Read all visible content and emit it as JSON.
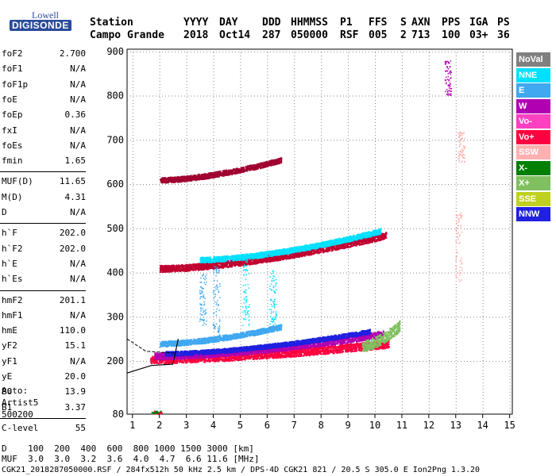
{
  "logo": {
    "line1": "Lowell",
    "line2": "DIGISONDE"
  },
  "header": {
    "row1": [
      {
        "key": "station_label",
        "text": "Station"
      },
      {
        "key": "yyyy_label",
        "text": "YYYY"
      },
      {
        "key": "day_label",
        "text": "DAY"
      },
      {
        "key": "ddd_label",
        "text": "DDD"
      },
      {
        "key": "hhmmss_label",
        "text": "HHMMSS"
      },
      {
        "key": "p1_label",
        "text": "P1"
      },
      {
        "key": "ffs_label",
        "text": "FFS"
      },
      {
        "key": "s_label",
        "text": "S"
      },
      {
        "key": "axn_label",
        "text": "AXN"
      },
      {
        "key": "pps_label",
        "text": "PPS"
      },
      {
        "key": "iga_label",
        "text": "IGA"
      },
      {
        "key": "ps_label",
        "text": "PS"
      }
    ],
    "row2": [
      {
        "key": "station",
        "text": "Campo Grande"
      },
      {
        "key": "yyyy",
        "text": "2018"
      },
      {
        "key": "day",
        "text": "Oct14"
      },
      {
        "key": "ddd",
        "text": "287"
      },
      {
        "key": "hhmmss",
        "text": "050000"
      },
      {
        "key": "p1",
        "text": "RSF"
      },
      {
        "key": "ffs",
        "text": "005"
      },
      {
        "key": "s",
        "text": "2"
      },
      {
        "key": "axn",
        "text": "713"
      },
      {
        "key": "pps",
        "text": "100"
      },
      {
        "key": "iga",
        "text": "03+"
      },
      {
        "key": "ps",
        "text": "36"
      }
    ]
  },
  "params": [
    {
      "name": "foF2",
      "value": "2.700"
    },
    {
      "name": "foF1",
      "value": "N/A"
    },
    {
      "name": "foF1p",
      "value": "N/A"
    },
    {
      "name": "foE",
      "value": "N/A"
    },
    {
      "name": "foEp",
      "value": "0.36"
    },
    {
      "name": "fxI",
      "value": "N/A"
    },
    {
      "name": "foEs",
      "value": "N/A"
    },
    {
      "name": "fmin",
      "value": "1.65"
    },
    {
      "name": "MUF(D)",
      "value": "11.65"
    },
    {
      "name": "M(D)",
      "value": "4.31"
    },
    {
      "name": "D",
      "value": "N/A"
    },
    {
      "name": "h`F",
      "value": "202.0"
    },
    {
      "name": "h`F2",
      "value": "202.0"
    },
    {
      "name": "h`E",
      "value": "N/A"
    },
    {
      "name": "h`Es",
      "value": "N/A"
    },
    {
      "name": "hmF2",
      "value": "201.1"
    },
    {
      "name": "hmF1",
      "value": "N/A"
    },
    {
      "name": "hmE",
      "value": "110.0"
    },
    {
      "name": "yF2",
      "value": "15.1"
    },
    {
      "name": "yF1",
      "value": "N/A"
    },
    {
      "name": "yE",
      "value": "20.0"
    },
    {
      "name": "B0",
      "value": "13.9"
    },
    {
      "name": "B1",
      "value": "3.37"
    },
    {
      "name": "C-level",
      "value": "55"
    }
  ],
  "auto_info": {
    "line1": "Auto:",
    "line2": "Artist5",
    "line3": "500200"
  },
  "bottom": {
    "d_row": "D    100  200  400  600  800 1000 1500 3000 [km]",
    "muf_row": "MUF  3.0  3.0  3.2  3.6  4.0  4.7  6.6 11.6 [MHz]",
    "file_row": "CGK21_2018287050000.RSF / 284fx512h 50 kHz 2.5 km / DPS-4D CGK21 821 / 20.5 S 305.0 E Ion2Png 1.3.20"
  },
  "legend": [
    {
      "label": "NoVal",
      "color": "#808080"
    },
    {
      "label": "NNE",
      "color": "#00e0ff"
    },
    {
      "label": "E",
      "color": "#40a8f0"
    },
    {
      "label": "W",
      "color": "#b000b0"
    },
    {
      "label": "Vo-",
      "color": "#ff40c0"
    },
    {
      "label": "Vo+",
      "color": "#ff0040"
    },
    {
      "label": "SSW",
      "color": "#ffb0b0"
    },
    {
      "label": "X-",
      "color": "#008000"
    },
    {
      "label": "X+",
      "color": "#80c060"
    },
    {
      "label": "SSE",
      "color": "#c0d020"
    },
    {
      "label": "NNW",
      "color": "#2020e0"
    }
  ],
  "chart_data": {
    "type": "scatter",
    "xlabel": "",
    "ylabel": "",
    "xlim": [
      0.8,
      15.1
    ],
    "ylim": [
      80,
      905
    ],
    "x_ticks": [
      1,
      2,
      3,
      4,
      5,
      6,
      7,
      8,
      9,
      10,
      11,
      12,
      13,
      14,
      15
    ],
    "y_ticks": [
      80,
      200,
      300,
      400,
      500,
      600,
      700,
      800,
      900
    ],
    "traces": [
      {
        "name": "Vo+",
        "color": "#ff0040",
        "x_range": [
          1.65,
          10.5
        ],
        "y_start": 205,
        "y_end": 240,
        "spread": 18
      },
      {
        "name": "W",
        "color": "#b000b0",
        "x_range": [
          1.8,
          10.3
        ],
        "y_start": 212,
        "y_end": 262,
        "spread": 15
      },
      {
        "name": "NNW",
        "color": "#2020e0",
        "x_range": [
          2.2,
          9.8
        ],
        "y_start": 218,
        "y_end": 268,
        "spread": 10
      },
      {
        "name": "E",
        "color": "#40a8f0",
        "x_range": [
          2.0,
          6.5
        ],
        "y_start": 240,
        "y_end": 278,
        "spread": 12
      },
      {
        "name": "X+",
        "color": "#80c060",
        "x_range": [
          9.5,
          10.9
        ],
        "y_start": 235,
        "y_end": 280,
        "spread": 25
      },
      {
        "name": "Vo+ 2nd hop",
        "color": "#c00030",
        "x_range": [
          2.0,
          10.4
        ],
        "y_start": 410,
        "y_end": 485,
        "spread": 15
      },
      {
        "name": "NNE 2nd hop",
        "color": "#00e0ff",
        "x_range": [
          3.5,
          10.2
        ],
        "y_start": 430,
        "y_end": 495,
        "spread": 12
      },
      {
        "name": "Vo+ 3rd hop",
        "color": "#a00030",
        "x_range": [
          2.0,
          6.5
        ],
        "y_start": 610,
        "y_end": 655,
        "spread": 12
      }
    ]
  }
}
